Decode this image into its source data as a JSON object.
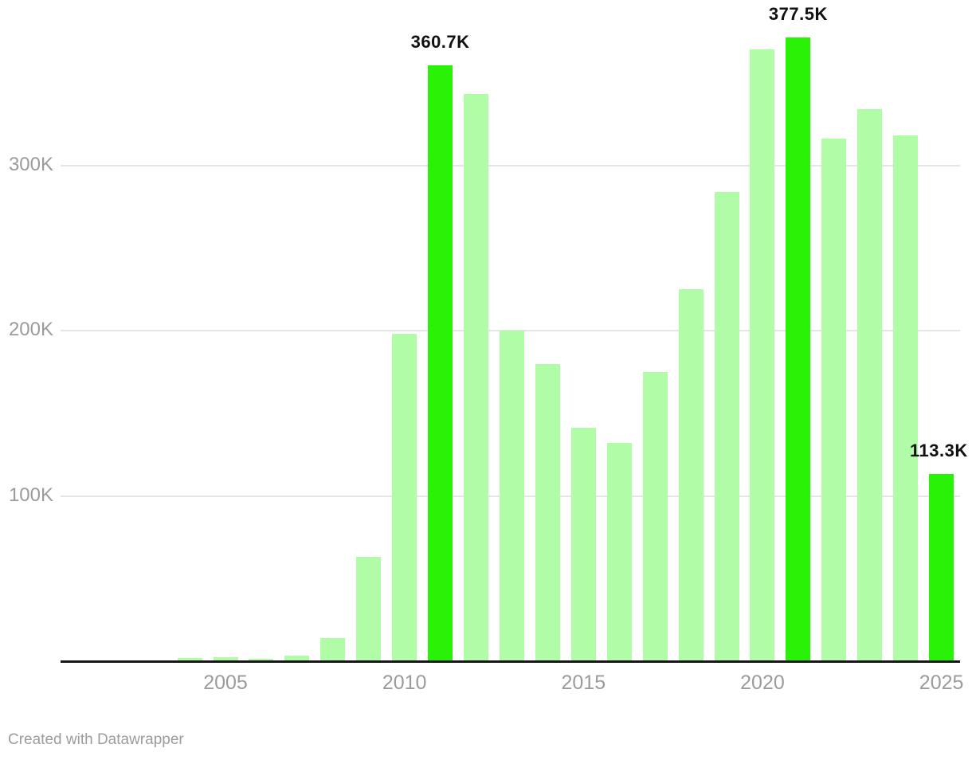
{
  "chart_data": {
    "type": "bar",
    "title": "",
    "x": [
      2001,
      2002,
      2003,
      2004,
      2005,
      2006,
      2007,
      2008,
      2009,
      2010,
      2011,
      2012,
      2013,
      2014,
      2015,
      2016,
      2017,
      2018,
      2019,
      2020,
      2021,
      2022,
      2023,
      2024,
      2025
    ],
    "values": [
      0.2,
      0.3,
      0.6,
      2,
      2.4,
      1.4,
      3.6,
      14,
      63,
      198,
      360.7,
      343,
      200,
      180,
      141,
      132,
      175,
      225,
      284,
      370,
      377.5,
      316,
      334,
      318,
      113.3
    ],
    "unit": "K",
    "ylim": [
      0,
      400
    ],
    "grid": "horizontal",
    "legend": "none",
    "y_gridlines": [
      100,
      200,
      300
    ],
    "y_tick_labels": [
      "100K",
      "200K",
      "300K"
    ],
    "x_tick_years": [
      "2005",
      "2010",
      "2015",
      "2020",
      "2025"
    ],
    "highlights": [
      {
        "year": 2011,
        "label": "360.7K"
      },
      {
        "year": 2021,
        "label": "377.5K"
      },
      {
        "year": 2025,
        "label": "113.3K"
      }
    ],
    "colors": {
      "bar": "#b0fca7",
      "bar_highlight": "#2af207",
      "axis_line": "#161616",
      "gridline": "#e5e5e5",
      "tick_text": "#9b9b9b",
      "value_label_text": "#111111"
    }
  },
  "footer": {
    "credit": "Created with Datawrapper"
  }
}
